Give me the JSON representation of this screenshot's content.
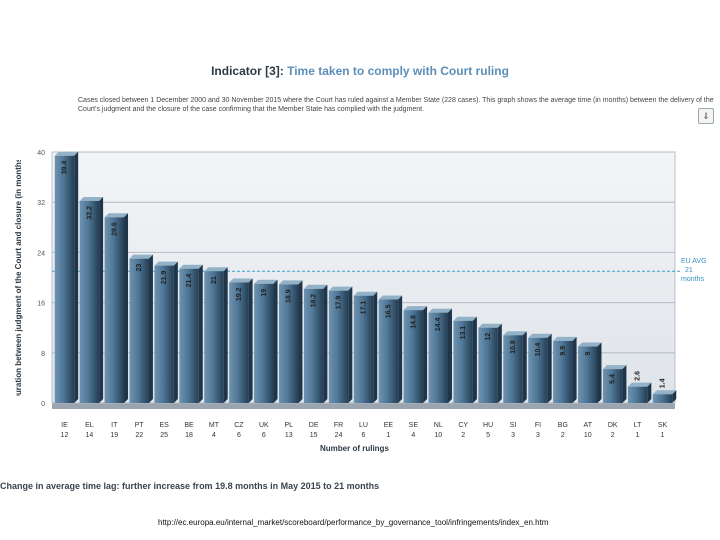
{
  "header": {
    "title_prefix": "Indicator [3]: ",
    "title_main": "Time taken to comply with Court ruling",
    "description": "Cases closed between 1 December 2000 and 30 November 2015 where the Court has ruled against a Member State (228 cases). This graph shows the average time (in months) between the delivery of the Court's judgment and the closure of the case confirming that the Member State has complied with the judgment.",
    "export_icon": "download-icon"
  },
  "average": {
    "label": "EU AVG",
    "value_label": "21",
    "unit": "months",
    "color": "#3a9fd4"
  },
  "footer": {
    "text": "Change in average time lag: further increase from 19.8 months in May 2015 to 21 months"
  },
  "source": {
    "url": "http://ec.europa.eu/internal_market/scoreboard/performance_by_governance_tool/infringements/index_en.htm"
  },
  "chart_data": {
    "type": "bar",
    "ylabel": "Duration between judgment of the Court and closure (in months)",
    "xlabel": "Number of rulings",
    "ylim": [
      0,
      40
    ],
    "yticks": [
      0,
      8,
      16,
      24,
      32,
      40
    ],
    "grid": true,
    "average": 21,
    "bar_color": "#4f7796",
    "categories": [
      "IE",
      "EL",
      "IT",
      "PT",
      "ES",
      "BE",
      "MT",
      "CZ",
      "UK",
      "PL",
      "DE",
      "FR",
      "LU",
      "EE",
      "SE",
      "NL",
      "CY",
      "HU",
      "SI",
      "FI",
      "BG",
      "AT",
      "DK",
      "LT",
      "SK"
    ],
    "counts": [
      "12",
      "14",
      "19",
      "22",
      "25",
      "18",
      "4",
      "6",
      "6",
      "13",
      "15",
      "24",
      "6",
      "1",
      "4",
      "10",
      "2",
      "5",
      "3",
      "3",
      "2",
      "10",
      "2",
      "1",
      "1"
    ],
    "value_labels": [
      "39.4",
      "32.2",
      "29.6",
      "23",
      "21.9",
      "21.4",
      "21",
      "19.2",
      "19",
      "18.9",
      "18.2",
      "17.9",
      "17.1",
      "16.5",
      "14.8",
      "14.4",
      "13.1",
      "12",
      "10.8",
      "10.4",
      "9.9",
      "9",
      "5.4",
      "2.6",
      "1.4"
    ],
    "values": [
      39.4,
      32.2,
      29.6,
      23,
      21.9,
      21.4,
      21,
      19.2,
      19,
      18.9,
      18.2,
      17.9,
      17.1,
      16.5,
      14.8,
      14.4,
      13.1,
      12,
      10.8,
      10.4,
      9.9,
      9,
      5.4,
      2.6,
      1.4
    ]
  }
}
